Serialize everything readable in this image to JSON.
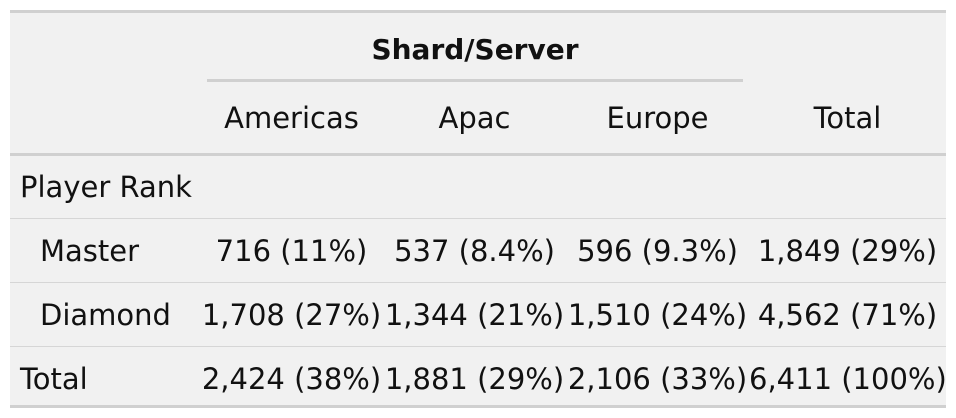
{
  "table": {
    "spanner": "Shard/Server",
    "columns": [
      "Americas",
      "Apac",
      "Europe",
      "Total"
    ],
    "group": "Player Rank",
    "rows": [
      {
        "label": "Master",
        "cells": [
          "716 (11%)",
          "537 (8.4%)",
          "596 (9.3%)",
          "1,849 (29%)"
        ]
      },
      {
        "label": "Diamond",
        "cells": [
          "1,708 (27%)",
          "1,344 (21%)",
          "1,510 (24%)",
          "4,562 (71%)"
        ]
      }
    ],
    "total": {
      "label": "Total",
      "cells": [
        "2,424 (38%)",
        "1,881 (29%)",
        "2,106 (33%)",
        "6,411 (100%)"
      ]
    }
  }
}
